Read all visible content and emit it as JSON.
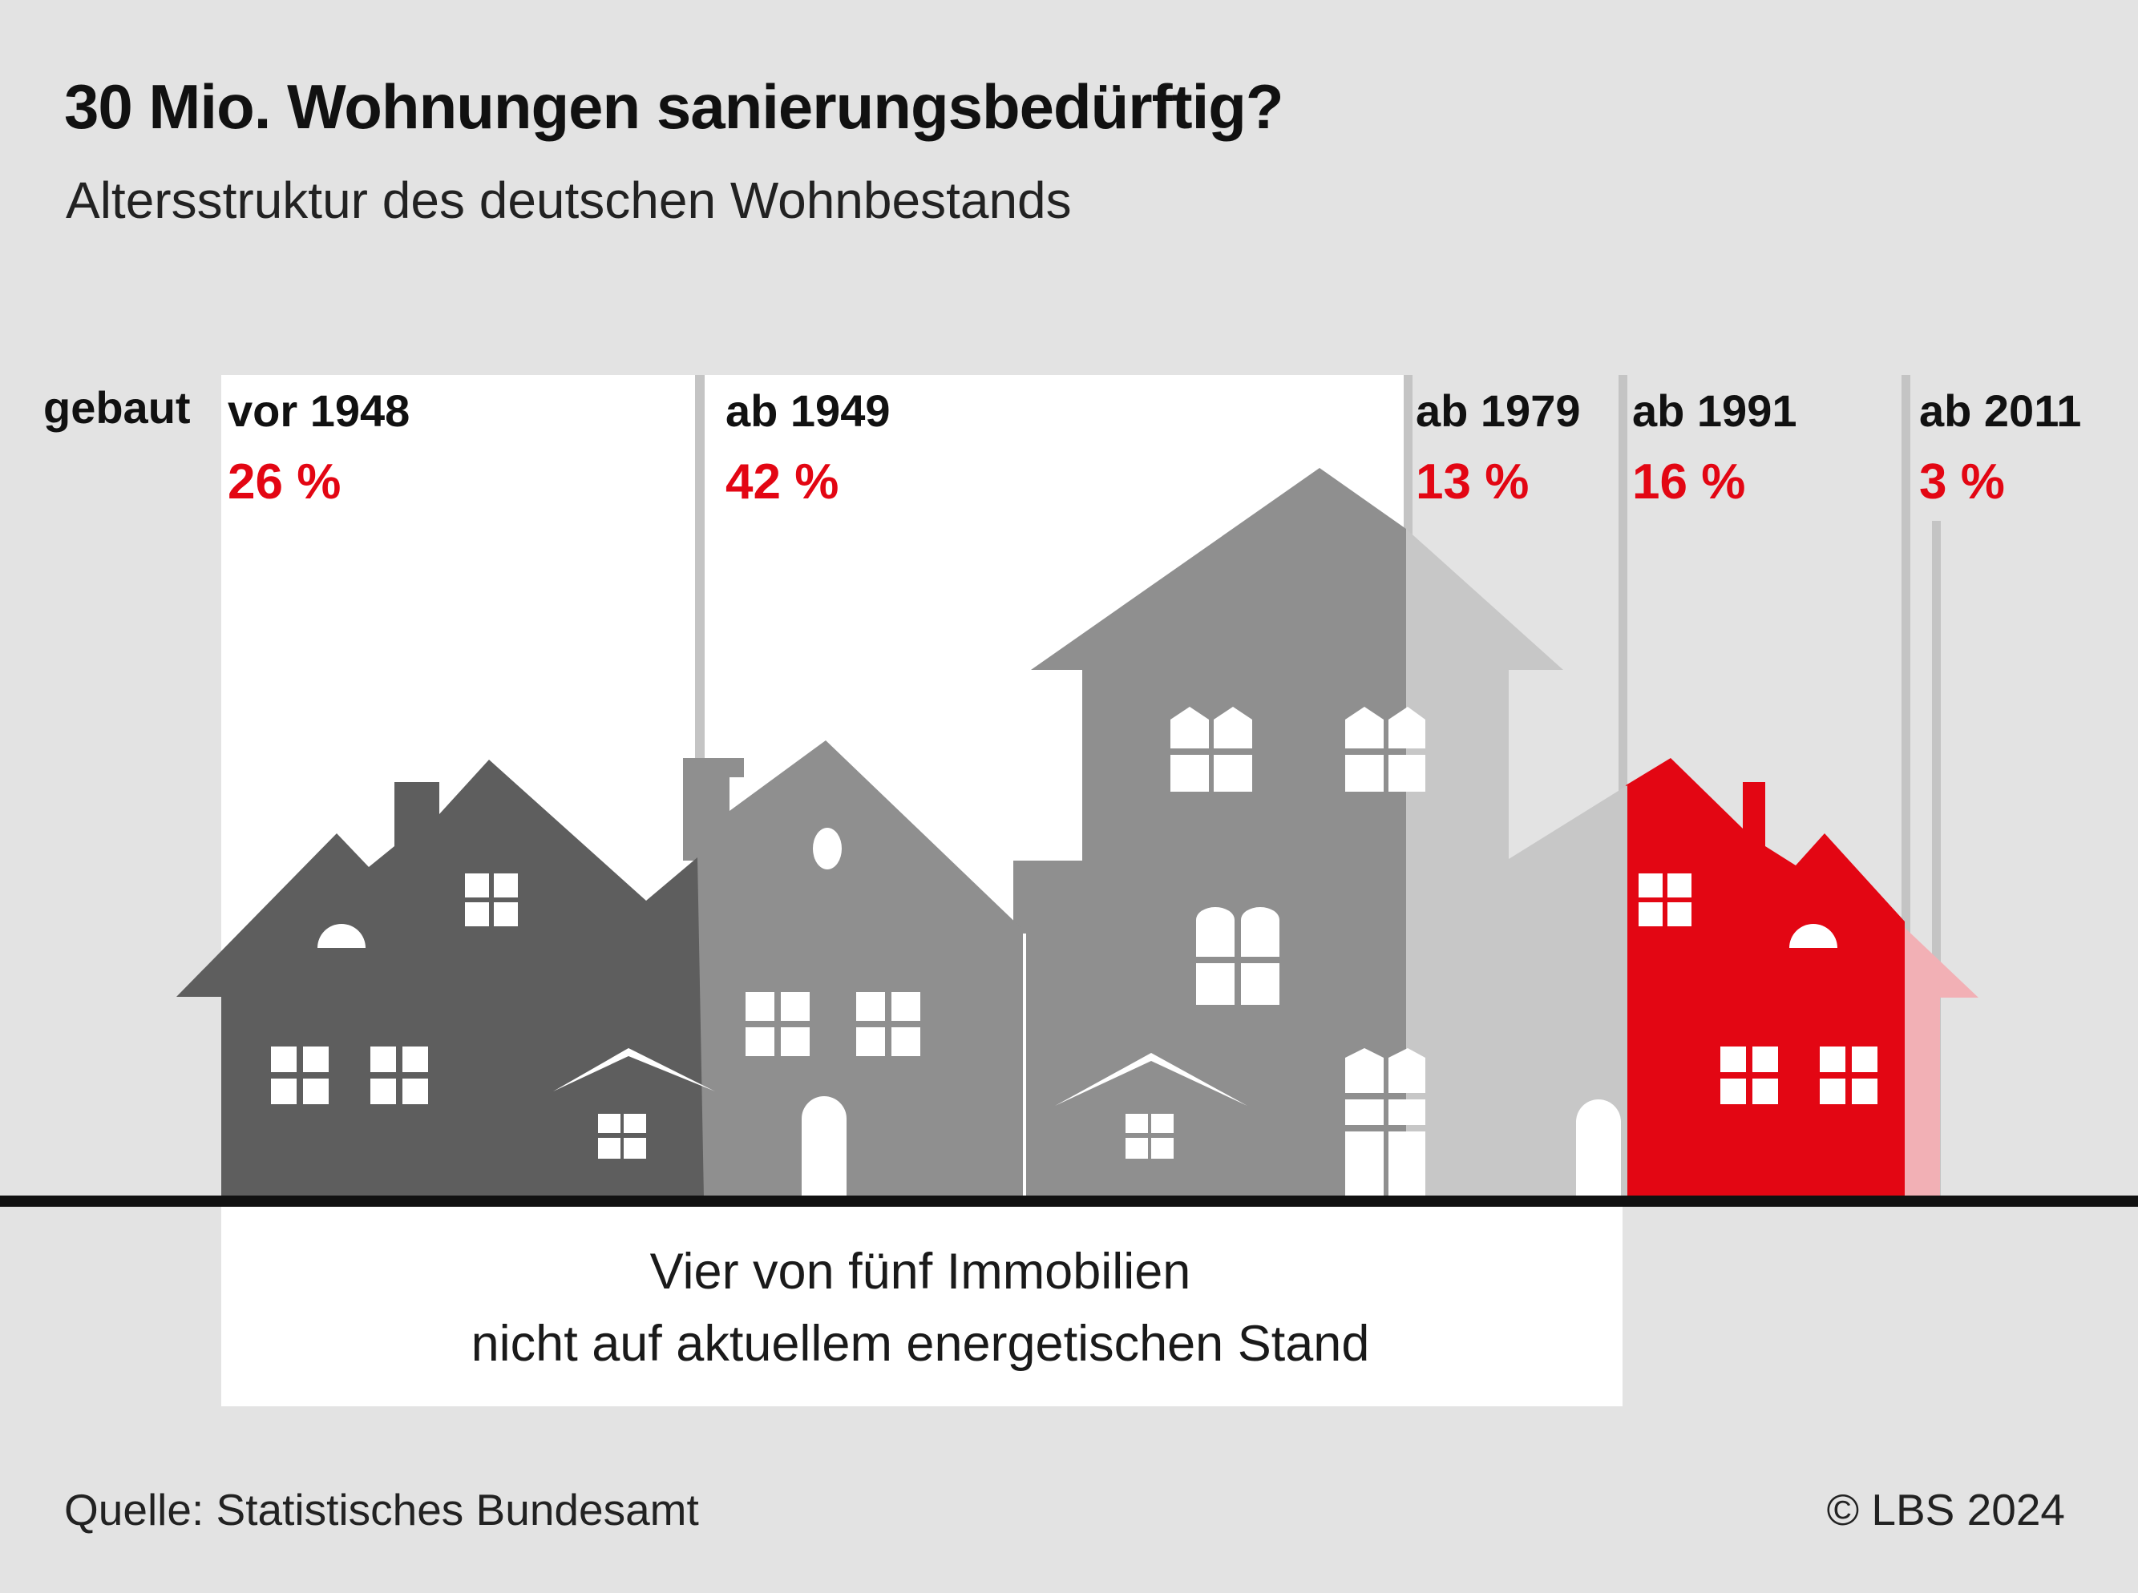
{
  "title": "30 Mio. Wohnungen sanierungsbedürftig?",
  "subtitle": "Altersstruktur des deutschen Wohnbestands",
  "built_label": "gebaut",
  "note_lines": [
    "Vier von fünf Immobilien",
    "nicht auf aktuellem energetischen Stand"
  ],
  "source": "Quelle: Statistisches Bundesamt",
  "copyright": "© LBS 2024",
  "colors": {
    "background": "#e3e3e3",
    "panel": "#ffffff",
    "percent": "#e30613",
    "vor_1948": "#5e5e5e",
    "ab_1949": "#8f8f8f",
    "ab_1979": "#c7c7c7",
    "ab_1991": "#e30613",
    "ab_2011": "#f2b0b5",
    "divider": "#c4c4c4",
    "ground": "#111111"
  },
  "chart_data": {
    "type": "bar",
    "categories": [
      "vor 1948",
      "ab 1949",
      "ab 1979",
      "ab 1991",
      "ab 2011"
    ],
    "values": [
      26,
      42,
      13,
      16,
      3
    ],
    "value_labels": [
      "26 %",
      "42 %",
      "13 %",
      "16 %",
      "3 %"
    ],
    "unit": "%"
  }
}
